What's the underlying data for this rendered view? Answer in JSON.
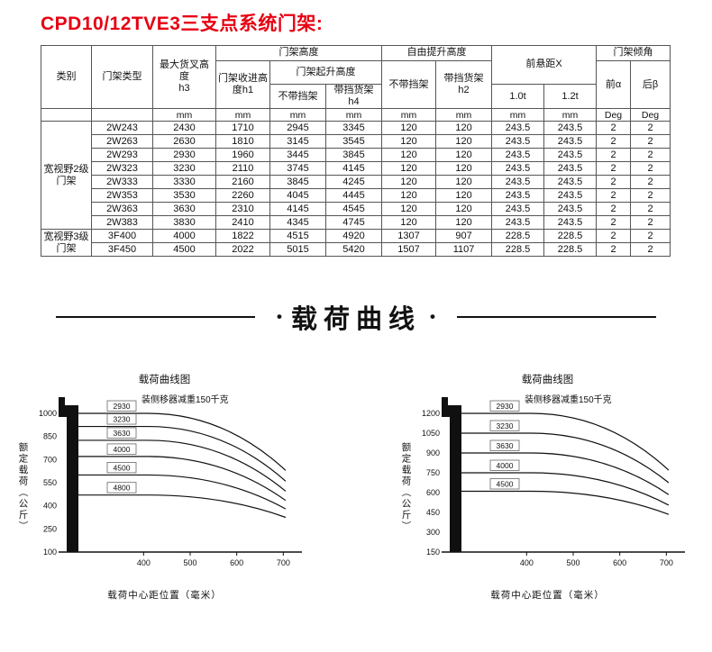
{
  "page": {
    "title": "CPD10/12TVE3三支点系统门架:"
  },
  "table": {
    "headers": {
      "category": "类别",
      "mast_type": "门架类型",
      "max_fork_height": "最大货叉高度",
      "h3": "h3",
      "mast_height": "门架高度",
      "retracted_height": "门架收进高度h1",
      "lift_height": "门架起升高度",
      "without_backrest": "不带挡架",
      "with_backrest": "带挡货架",
      "h4": "h4",
      "free_lift": "自由提升高度",
      "h2": "h2",
      "front_overhang": "前悬距X",
      "t10": "1.0t",
      "t12": "1.2t",
      "tilt": "门架倾角",
      "front_alpha": "前α",
      "rear_beta": "后β"
    },
    "units": [
      "",
      "",
      "mm",
      "mm",
      "mm",
      "mm",
      "mm",
      "mm",
      "mm",
      "mm",
      "Deg",
      "Deg"
    ],
    "groups": [
      {
        "label": "宽视野2级门架",
        "rows": [
          [
            "2W243",
            "2430",
            "1710",
            "2945",
            "3345",
            "120",
            "120",
            "243.5",
            "243.5",
            "2",
            "2"
          ],
          [
            "2W263",
            "2630",
            "1810",
            "3145",
            "3545",
            "120",
            "120",
            "243.5",
            "243.5",
            "2",
            "2"
          ],
          [
            "2W293",
            "2930",
            "1960",
            "3445",
            "3845",
            "120",
            "120",
            "243.5",
            "243.5",
            "2",
            "2"
          ],
          [
            "2W323",
            "3230",
            "2110",
            "3745",
            "4145",
            "120",
            "120",
            "243.5",
            "243.5",
            "2",
            "2"
          ],
          [
            "2W333",
            "3330",
            "2160",
            "3845",
            "4245",
            "120",
            "120",
            "243.5",
            "243.5",
            "2",
            "2"
          ],
          [
            "2W353",
            "3530",
            "2260",
            "4045",
            "4445",
            "120",
            "120",
            "243.5",
            "243.5",
            "2",
            "2"
          ],
          [
            "2W363",
            "3630",
            "2310",
            "4145",
            "4545",
            "120",
            "120",
            "243.5",
            "243.5",
            "2",
            "2"
          ],
          [
            "2W383",
            "3830",
            "2410",
            "4345",
            "4745",
            "120",
            "120",
            "243.5",
            "243.5",
            "2",
            "2"
          ]
        ]
      },
      {
        "label": "宽视野3级门架",
        "rows": [
          [
            "3F400",
            "4000",
            "1822",
            "4515",
            "4920",
            "1307",
            "907",
            "228.5",
            "228.5",
            "2",
            "2"
          ],
          [
            "3F450",
            "4500",
            "2022",
            "5015",
            "5420",
            "1507",
            "1107",
            "228.5",
            "228.5",
            "2",
            "2"
          ]
        ]
      }
    ]
  },
  "divider": {
    "text": "载荷曲线",
    "bullet": "•"
  },
  "chart_data": [
    {
      "type": "line",
      "title": "载荷曲线图",
      "annotation": "装侧移器减重150千克",
      "ylabel": "额定载荷（公斤）",
      "xlabel": "载荷中心距位置（毫米）",
      "y_ticks": [
        1000,
        850,
        700,
        550,
        400,
        250,
        100
      ],
      "x_ticks": [
        400,
        500,
        600,
        700
      ],
      "y_range": [
        100,
        1000
      ],
      "x_range": [
        260,
        740
      ],
      "bend_x": 410,
      "legend_position": "left-stacked",
      "series": [
        {
          "label": "2930",
          "start": 1000,
          "end": 630
        },
        {
          "label": "3230",
          "start": 915,
          "end": 560
        },
        {
          "label": "3630",
          "start": 825,
          "end": 495
        },
        {
          "label": "4000",
          "start": 720,
          "end": 435
        },
        {
          "label": "4500",
          "start": 600,
          "end": 380
        },
        {
          "label": "4800",
          "start": 470,
          "end": 325
        }
      ]
    },
    {
      "type": "line",
      "title": "载荷曲线图",
      "annotation": "装侧移器减重150千克",
      "ylabel": "额定载荷（公斤）",
      "xlabel": "载荷中心距位置（毫米）",
      "y_ticks": [
        1200,
        1050,
        900,
        750,
        600,
        450,
        300,
        150
      ],
      "x_ticks": [
        400,
        500,
        600,
        700
      ],
      "y_range": [
        150,
        1200
      ],
      "x_range": [
        260,
        740
      ],
      "bend_x": 410,
      "legend_position": "left-stacked",
      "series": [
        {
          "label": "2930",
          "start": 1200,
          "end": 770
        },
        {
          "label": "3230",
          "start": 1050,
          "end": 675
        },
        {
          "label": "3630",
          "start": 900,
          "end": 585
        },
        {
          "label": "4000",
          "start": 750,
          "end": 505
        },
        {
          "label": "4500",
          "start": 610,
          "end": 435
        }
      ]
    }
  ]
}
